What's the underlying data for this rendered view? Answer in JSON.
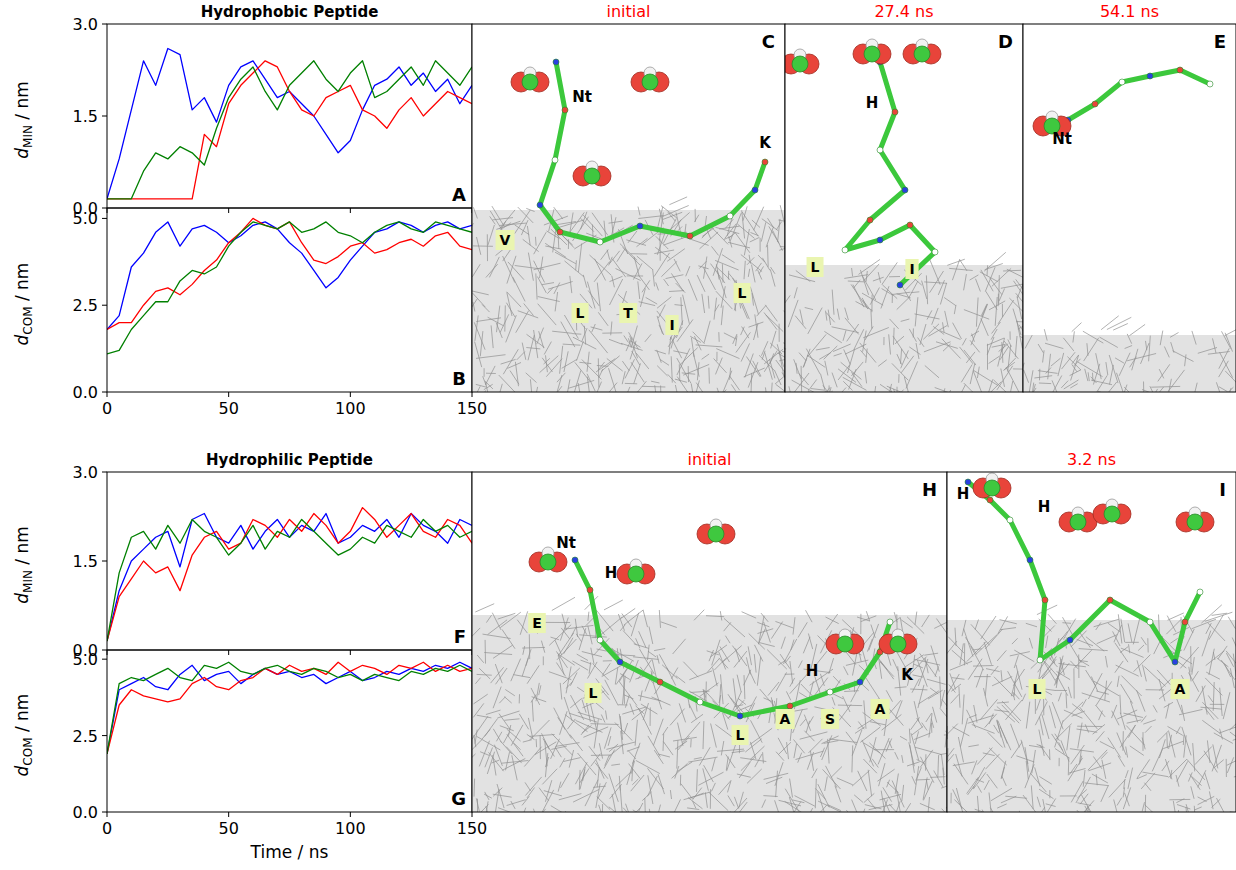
{
  "chart_data": [
    {
      "type": "line",
      "title": "Hydrophobic Peptide",
      "annotations": [
        "A"
      ],
      "ylabel": "dMIN / nm",
      "x": [
        0,
        5,
        10,
        15,
        20,
        25,
        30,
        35,
        40,
        45,
        50,
        55,
        60,
        65,
        70,
        75,
        80,
        85,
        90,
        95,
        100,
        105,
        110,
        115,
        120,
        125,
        130,
        135,
        140,
        145,
        150
      ],
      "xlim": [
        0,
        150
      ],
      "xticks": [
        0,
        50,
        100,
        150
      ],
      "ylim": [
        0,
        3
      ],
      "yticks": [
        {
          "value": 0,
          "label": "0.0"
        },
        1.5,
        {
          "value": 3,
          "label": "3.0"
        }
      ],
      "tick_labels": "y",
      "series": [
        {
          "color": "#0000ff",
          "values": [
            0.15,
            0.8,
            1.6,
            2.4,
            2.0,
            2.6,
            2.5,
            1.6,
            1.8,
            1.4,
            2.0,
            2.3,
            2.4,
            2.1,
            1.8,
            1.9,
            1.7,
            1.5,
            1.2,
            0.9,
            1.1,
            1.6,
            2.0,
            2.1,
            2.3,
            2.0,
            2.2,
            1.9,
            2.1,
            1.7,
            2.0
          ]
        },
        {
          "color": "#ff0000",
          "values": [
            0.15,
            0.15,
            0.15,
            0.15,
            0.15,
            0.15,
            0.15,
            0.15,
            1.2,
            1.0,
            1.7,
            2.0,
            2.2,
            2.4,
            2.3,
            1.9,
            1.6,
            1.5,
            1.8,
            1.9,
            2.0,
            1.6,
            1.5,
            1.3,
            1.6,
            1.8,
            1.5,
            1.7,
            1.9,
            1.8,
            1.7
          ]
        },
        {
          "color": "#008000",
          "values": [
            0.15,
            0.15,
            0.15,
            0.6,
            0.9,
            0.8,
            1.0,
            0.9,
            0.7,
            1.3,
            1.8,
            2.1,
            2.3,
            1.9,
            1.6,
            2.0,
            2.2,
            2.4,
            2.1,
            1.9,
            2.2,
            2.4,
            1.8,
            1.9,
            2.1,
            2.3,
            2.0,
            2.4,
            2.2,
            2.0,
            2.3
          ]
        }
      ]
    },
    {
      "type": "line",
      "annotations": [
        "B"
      ],
      "ylabel": "dCOM / nm",
      "x": [
        0,
        5,
        10,
        15,
        20,
        25,
        30,
        35,
        40,
        45,
        50,
        55,
        60,
        65,
        70,
        75,
        80,
        85,
        90,
        95,
        100,
        105,
        110,
        115,
        120,
        125,
        130,
        135,
        140,
        145,
        150
      ],
      "xlim": [
        0,
        150
      ],
      "xticks": [
        0,
        50,
        100,
        150
      ],
      "ylim": [
        0,
        5.3
      ],
      "yticks": [
        {
          "value": 0,
          "label": "0.0"
        },
        2.5,
        {
          "value": 5,
          "label": "5.0"
        }
      ],
      "series": [
        {
          "color": "#0000ff",
          "values": [
            1.8,
            2.2,
            3.6,
            4.0,
            4.6,
            4.9,
            4.2,
            4.7,
            4.8,
            4.6,
            4.3,
            4.5,
            4.8,
            4.9,
            4.7,
            4.3,
            4.0,
            3.5,
            3.0,
            3.3,
            3.8,
            4.2,
            4.6,
            4.7,
            4.9,
            4.8,
            4.6,
            4.8,
            4.9,
            4.7,
            4.8
          ]
        },
        {
          "color": "#ff0000",
          "values": [
            1.8,
            2.0,
            2.0,
            2.5,
            2.9,
            3.0,
            2.8,
            3.1,
            3.5,
            3.8,
            4.3,
            4.6,
            5.0,
            4.8,
            4.7,
            4.9,
            4.3,
            3.8,
            3.7,
            3.9,
            4.2,
            4.3,
            4.0,
            4.1,
            4.3,
            4.4,
            4.2,
            4.5,
            4.6,
            4.2,
            4.1
          ]
        },
        {
          "color": "#008000",
          "values": [
            1.1,
            1.2,
            1.8,
            2.2,
            2.6,
            2.6,
            3.2,
            3.5,
            3.4,
            3.6,
            4.2,
            4.6,
            4.9,
            4.8,
            4.7,
            4.9,
            4.6,
            4.7,
            4.9,
            4.6,
            4.5,
            4.3,
            4.6,
            4.8,
            4.9,
            4.7,
            4.6,
            4.9,
            4.8,
            4.7,
            4.6
          ]
        }
      ]
    },
    {
      "type": "line",
      "title": "Hydrophilic Peptide",
      "annotations": [
        "F"
      ],
      "ylabel": "dMIN / nm",
      "x": [
        0,
        5,
        10,
        15,
        20,
        25,
        30,
        35,
        40,
        45,
        50,
        55,
        60,
        65,
        70,
        75,
        80,
        85,
        90,
        95,
        100,
        105,
        110,
        115,
        120,
        125,
        130,
        135,
        140,
        145,
        150
      ],
      "xlim": [
        0,
        150
      ],
      "xticks": [
        0,
        50,
        100,
        150
      ],
      "ylim": [
        0,
        3
      ],
      "yticks": [
        {
          "value": 0,
          "label": "0.0"
        },
        1.5,
        {
          "value": 3,
          "label": "3.0"
        }
      ],
      "tick_labels": "y",
      "series": [
        {
          "color": "#0000ff",
          "values": [
            0.15,
            1.0,
            1.5,
            1.7,
            1.9,
            2.0,
            1.4,
            2.2,
            2.3,
            1.9,
            1.8,
            2.1,
            1.7,
            2.0,
            2.2,
            1.9,
            2.1,
            2.0,
            2.3,
            1.8,
            1.9,
            2.1,
            2.0,
            2.2,
            1.9,
            2.3,
            2.1,
            2.0,
            1.8,
            2.2,
            2.1
          ]
        },
        {
          "color": "#ff0000",
          "values": [
            0.15,
            0.9,
            1.2,
            1.5,
            1.3,
            1.4,
            1.0,
            1.6,
            1.9,
            2.0,
            1.7,
            1.8,
            2.2,
            2.1,
            1.9,
            2.2,
            2.0,
            2.3,
            2.1,
            1.8,
            2.0,
            2.4,
            2.2,
            1.9,
            2.1,
            2.3,
            2.0,
            1.9,
            2.2,
            2.1,
            1.8
          ]
        },
        {
          "color": "#008000",
          "values": [
            0.15,
            1.3,
            1.9,
            2.0,
            1.7,
            2.1,
            1.8,
            2.2,
            2.0,
            1.9,
            1.6,
            1.8,
            2.1,
            1.7,
            2.0,
            1.9,
            2.2,
            2.0,
            1.8,
            1.6,
            1.7,
            1.9,
            1.8,
            2.1,
            2.0,
            1.9,
            2.2,
            2.0,
            2.1,
            1.9,
            2.0
          ]
        }
      ]
    },
    {
      "type": "line",
      "annotations": [
        "G"
      ],
      "ylabel": "dCOM / nm",
      "xlabel": "Time / ns",
      "x": [
        0,
        5,
        10,
        15,
        20,
        25,
        30,
        35,
        40,
        45,
        50,
        55,
        60,
        65,
        70,
        75,
        80,
        85,
        90,
        95,
        100,
        105,
        110,
        115,
        120,
        125,
        130,
        135,
        140,
        145,
        150
      ],
      "xlim": [
        0,
        150
      ],
      "xticks": [
        0,
        50,
        100,
        150
      ],
      "ylim": [
        0,
        5.3
      ],
      "yticks": [
        {
          "value": 0,
          "label": "0.0"
        },
        2.5,
        {
          "value": 5,
          "label": "5.0"
        }
      ],
      "series": [
        {
          "color": "#0000ff",
          "values": [
            1.9,
            4.0,
            4.2,
            4.4,
            4.1,
            4.0,
            4.5,
            4.8,
            4.3,
            4.5,
            4.6,
            4.2,
            4.5,
            4.7,
            4.5,
            4.6,
            4.4,
            4.5,
            4.2,
            4.4,
            4.6,
            4.3,
            4.4,
            4.6,
            4.5,
            4.7,
            4.6,
            4.8,
            4.7,
            4.9,
            4.7
          ]
        },
        {
          "color": "#ff0000",
          "values": [
            1.9,
            3.5,
            4.0,
            3.8,
            3.7,
            3.6,
            3.7,
            4.2,
            4.4,
            4.1,
            4.0,
            4.3,
            4.4,
            4.7,
            4.5,
            4.8,
            4.6,
            4.7,
            4.5,
            4.9,
            4.6,
            4.8,
            4.7,
            4.5,
            4.8,
            4.7,
            4.9,
            4.6,
            4.8,
            4.6,
            4.7
          ]
        },
        {
          "color": "#008000",
          "values": [
            1.9,
            4.2,
            4.4,
            4.3,
            4.5,
            4.7,
            4.4,
            4.3,
            4.8,
            4.7,
            4.9,
            4.6,
            4.5,
            4.7,
            4.8,
            4.6,
            4.5,
            4.7,
            4.6,
            4.4,
            4.5,
            4.3,
            4.5,
            4.4,
            4.3,
            4.6,
            4.5,
            4.7,
            4.6,
            4.8,
            4.6
          ]
        }
      ]
    }
  ],
  "snapshots": [
    {
      "panel": "C",
      "title": "initial",
      "labels": [
        "Nt",
        "K"
      ],
      "boxed_labels": [
        "V",
        "L",
        "T",
        "I",
        "L"
      ]
    },
    {
      "panel": "D",
      "title": "27.4 ns",
      "labels": [
        "H"
      ],
      "boxed_labels": [
        "L",
        "I"
      ]
    },
    {
      "panel": "E",
      "title": "54.1 ns",
      "labels": [
        "Nt"
      ],
      "boxed_labels": []
    },
    {
      "panel": "H",
      "title": "initial",
      "labels": [
        "Nt",
        "H",
        "H",
        "K"
      ],
      "boxed_labels": [
        "E",
        "L",
        "L",
        "A",
        "S",
        "A"
      ]
    },
    {
      "panel": "I",
      "title": "3.2 ns",
      "labels": [
        "H",
        "H"
      ],
      "boxed_labels": [
        "L",
        "A"
      ]
    }
  ]
}
